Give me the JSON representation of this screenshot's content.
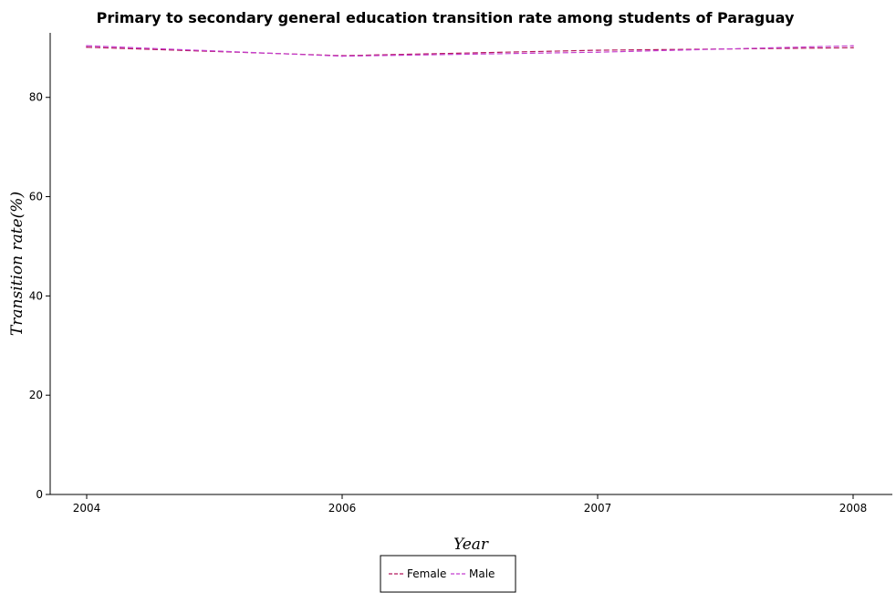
{
  "chart_data": {
    "type": "line",
    "title": "Primary to secondary general education transition rate among students of Paraguay",
    "xlabel": "Year",
    "ylabel": "Transition rate(%)",
    "categories": [
      "2004",
      "2006",
      "2007",
      "2008"
    ],
    "ylim": [
      0,
      93
    ],
    "yticks": [
      0,
      20,
      40,
      60,
      80
    ],
    "grid": false,
    "legend_position": "bottom-center",
    "series": [
      {
        "name": "Female",
        "color": "#b5185d",
        "values": [
          90.1,
          88.4,
          89.5,
          90.0
        ]
      },
      {
        "name": "Male",
        "color": "#c43fd1",
        "values": [
          90.4,
          88.3,
          89.1,
          90.4
        ]
      }
    ]
  }
}
